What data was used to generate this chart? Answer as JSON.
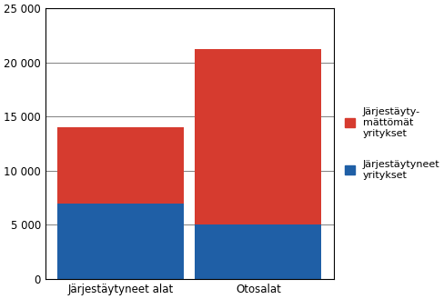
{
  "categories": [
    "Järjestäytyneet alat",
    "Otosalat"
  ],
  "blue_values": [
    7000,
    5000
  ],
  "red_values": [
    7000,
    16200
  ],
  "blue_color": "#1F5FA6",
  "red_color": "#D63B2F",
  "ylim": [
    0,
    25000
  ],
  "yticks": [
    0,
    5000,
    10000,
    15000,
    20000,
    25000
  ],
  "ytick_labels": [
    "0",
    "5 000",
    "10 000",
    "15 000",
    "20 000",
    "25 000"
  ],
  "legend_label_red": "Järjestäyty-\nmättömät\nyritykset",
  "legend_label_blue": "Järjestäytyneet\nyritykset",
  "background_color": "#ffffff",
  "bar_width": 0.92,
  "grid_color": "#808080",
  "font_size": 8.5
}
